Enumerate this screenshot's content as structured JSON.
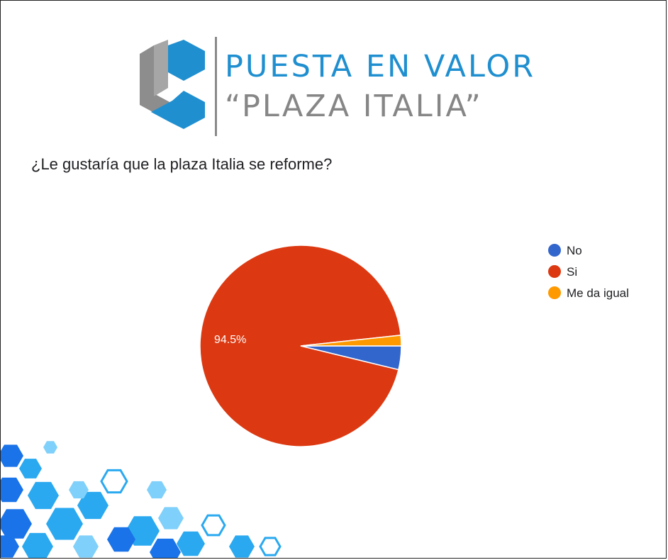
{
  "brand": {
    "title": "PUESTA EN VALOR",
    "subtitle": "“PLAZA ITALIA”",
    "colors": {
      "blue": "#1f8fd0",
      "gray": "#868686"
    },
    "logo_icon": "stacked-hexagon-logo-icon"
  },
  "question": "¿Le gustaría que la plaza Italia se reforme?",
  "chart_data": {
    "type": "pie",
    "title": "",
    "legend_position": "right",
    "slices": [
      {
        "label": "No",
        "value": 3.8,
        "color": "#3366cc"
      },
      {
        "label": "Si",
        "value": 94.5,
        "color": "#dc3912",
        "data_label": "94.5%"
      },
      {
        "label": "Me da igual",
        "value": 1.7,
        "color": "#ff9900"
      }
    ]
  },
  "decoration": {
    "icon": "hexagon-pattern-icon",
    "colors": [
      "#1a73e8",
      "#2aa9f0",
      "#7fd0fa"
    ]
  }
}
